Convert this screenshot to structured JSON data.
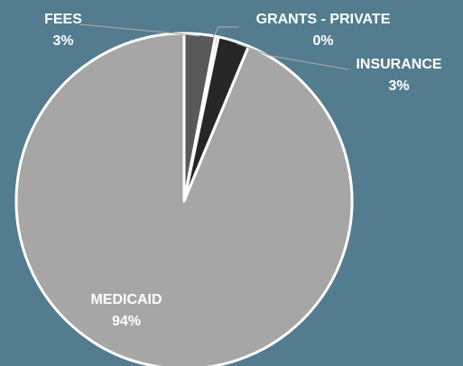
{
  "chart_data": {
    "type": "pie",
    "title": "",
    "legend": "none",
    "slices": [
      {
        "label": "FEES",
        "value": 3,
        "value_label": "3%",
        "color": "#595959"
      },
      {
        "label": "GRANTS - PRIVATE",
        "value": 0.3,
        "value_label": "0%",
        "color": "#7f7f7f"
      },
      {
        "label": "INSURANCE",
        "value": 3,
        "value_label": "3%",
        "color": "#262626"
      },
      {
        "label": "MEDICAID",
        "value": 94,
        "value_label": "94%",
        "color": "#a6a6a6"
      }
    ],
    "background_color": "#537c8e",
    "border_color": "#ffffff",
    "leader_line_color": "#a6a6a6"
  }
}
